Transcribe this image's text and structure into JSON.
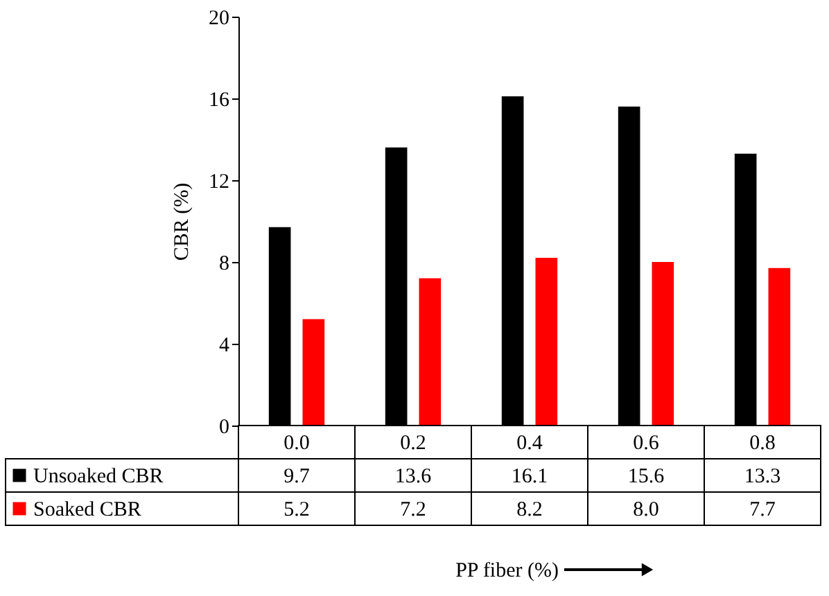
{
  "chart_data": {
    "type": "bar",
    "ylabel": "CBR (%)",
    "annotations": [
      "PP fiber (%)"
    ],
    "categories": [
      "0.0",
      "0.2",
      "0.4",
      "0.6",
      "0.8"
    ],
    "series": [
      {
        "name": "Unsoaked CBR",
        "color": "#000000",
        "values": [
          9.7,
          13.6,
          16.1,
          15.6,
          13.3
        ],
        "value_labels": [
          "9.7",
          "13.6",
          "16.1",
          "15.6",
          "13.3"
        ]
      },
      {
        "name": "Soaked CBR",
        "color": "#ff0000",
        "values": [
          5.2,
          7.2,
          8.2,
          8.0,
          7.7
        ],
        "value_labels": [
          "5.2",
          "7.2",
          "8.2",
          "8.0",
          "7.7"
        ]
      }
    ],
    "ylim": [
      0,
      20
    ],
    "yticks": [
      0,
      4,
      8,
      12,
      16,
      20
    ],
    "grid": false,
    "legend": "bottom"
  }
}
